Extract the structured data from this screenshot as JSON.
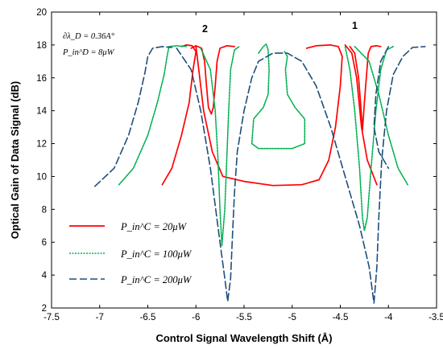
{
  "chart_data": {
    "type": "line",
    "title": "",
    "xlabel": "Control Signal Wavelength Shift (Å)",
    "ylabel": "Optical Gain of  Data Signal (dB)",
    "xlim": [
      -7.5,
      -3.5
    ],
    "ylim": [
      2,
      20
    ],
    "xticks": [
      -7.5,
      -7,
      -6.5,
      -6,
      -5.5,
      -5,
      -4.5,
      -4,
      -3.5
    ],
    "xtick_labels": [
      "-7.5",
      "-7",
      "-6.5",
      "-6",
      "-5.5",
      "-5",
      "-4.5",
      "-4",
      "-3.5"
    ],
    "yticks": [
      2,
      4,
      6,
      8,
      10,
      12,
      14,
      16,
      18,
      20
    ],
    "ytick_labels": [
      "2",
      "4",
      "6",
      "8",
      "10",
      "12",
      "14",
      "16",
      "18",
      "20"
    ],
    "grid": false,
    "legend_position": "lower-left",
    "annotations": {
      "line1": "∂λ_D = 0.36A°",
      "line2": "P_in^D = 8μW",
      "branch_left": "2",
      "branch_right": "1"
    },
    "series": [
      {
        "name": "P_in^C = 20μW",
        "color": "#ff0000",
        "dash": "solid",
        "segments": [
          [
            [
              -6.35,
              9.5
            ],
            [
              -6.25,
              10.5
            ],
            [
              -6.15,
              12.5
            ],
            [
              -6.07,
              14.5
            ],
            [
              -6.03,
              16.5
            ],
            [
              -6.0,
              17.6
            ],
            [
              -6.04,
              17.95
            ],
            [
              -6.1,
              18.0
            ],
            [
              -6.15,
              17.9
            ]
          ],
          [
            [
              -5.6,
              17.9
            ],
            [
              -5.68,
              17.95
            ],
            [
              -5.75,
              17.8
            ],
            [
              -5.78,
              17.0
            ],
            [
              -5.8,
              15.5
            ],
            [
              -5.82,
              14.2
            ],
            [
              -5.84,
              13.8
            ],
            [
              -5.87,
              14.2
            ],
            [
              -5.89,
              15.5
            ],
            [
              -5.91,
              17.0
            ],
            [
              -5.94,
              17.8
            ],
            [
              -6.0,
              17.95
            ],
            [
              -6.05,
              17.8
            ]
          ],
          [
            [
              -6.0,
              17.9
            ],
            [
              -5.97,
              16.5
            ],
            [
              -5.92,
              14.0
            ],
            [
              -5.83,
              11.5
            ],
            [
              -5.72,
              10.0
            ],
            [
              -5.5,
              9.7
            ],
            [
              -5.2,
              9.45
            ],
            [
              -4.9,
              9.5
            ],
            [
              -4.72,
              9.8
            ],
            [
              -4.62,
              11.0
            ],
            [
              -4.55,
              13.0
            ],
            [
              -4.5,
              15.5
            ],
            [
              -4.48,
              17.3
            ],
            [
              -4.52,
              17.9
            ],
            [
              -4.6,
              18.0
            ],
            [
              -4.75,
              17.95
            ],
            [
              -4.85,
              17.8
            ]
          ],
          [
            [
              -4.4,
              17.9
            ],
            [
              -4.35,
              17.5
            ],
            [
              -4.31,
              16.0
            ],
            [
              -4.29,
              14.5
            ],
            [
              -4.27,
              12.8
            ],
            [
              -4.25,
              14.5
            ],
            [
              -4.23,
              16.0
            ],
            [
              -4.21,
              17.5
            ],
            [
              -4.18,
              17.9
            ],
            [
              -4.12,
              17.95
            ],
            [
              -4.08,
              17.9
            ]
          ],
          [
            [
              -4.45,
              18.0
            ],
            [
              -4.38,
              17.5
            ],
            [
              -4.33,
              16.0
            ],
            [
              -4.28,
              13.0
            ],
            [
              -4.22,
              11.0
            ],
            [
              -4.12,
              9.5
            ]
          ]
        ]
      },
      {
        "name": "P_in^C = 100μW",
        "color": "#00b050",
        "dash": "dotted",
        "segments": [
          [
            [
              -6.8,
              9.5
            ],
            [
              -6.65,
              10.5
            ],
            [
              -6.5,
              12.5
            ],
            [
              -6.4,
              14.5
            ],
            [
              -6.33,
              16.2
            ],
            [
              -6.3,
              17.3
            ],
            [
              -6.28,
              17.9
            ],
            [
              -6.2,
              17.95
            ],
            [
              -6.1,
              17.9
            ]
          ],
          [
            [
              -5.95,
              17.8
            ],
            [
              -5.85,
              16.5
            ],
            [
              -5.8,
              14.0
            ],
            [
              -5.77,
              11.0
            ],
            [
              -5.75,
              8.0
            ],
            [
              -5.73,
              5.8
            ],
            [
              -5.7,
              8.0
            ],
            [
              -5.68,
              11.0
            ],
            [
              -5.66,
              14.0
            ],
            [
              -5.64,
              16.5
            ],
            [
              -5.6,
              17.7
            ],
            [
              -5.55,
              17.9
            ]
          ],
          [
            [
              -5.35,
              17.5
            ],
            [
              -5.3,
              17.9
            ],
            [
              -5.27,
              18.05
            ],
            [
              -5.25,
              17.7
            ],
            [
              -5.24,
              16.5
            ],
            [
              -5.25,
              15.0
            ],
            [
              -5.3,
              14.2
            ],
            [
              -5.4,
              13.5
            ],
            [
              -5.42,
              12.0
            ],
            [
              -5.35,
              11.7
            ],
            [
              -5.0,
              11.7
            ],
            [
              -4.87,
              12.0
            ],
            [
              -4.87,
              13.5
            ],
            [
              -4.97,
              14.2
            ],
            [
              -5.05,
              15.0
            ],
            [
              -5.07,
              16.5
            ],
            [
              -5.05,
              17.3
            ],
            [
              -5.08,
              17.6
            ]
          ],
          [
            [
              -4.45,
              17.9
            ],
            [
              -4.4,
              16.5
            ],
            [
              -4.35,
              14.0
            ],
            [
              -4.3,
              10.5
            ],
            [
              -4.27,
              7.5
            ],
            [
              -4.25,
              6.7
            ],
            [
              -4.22,
              7.5
            ],
            [
              -4.18,
              10.5
            ],
            [
              -4.13,
              14.0
            ],
            [
              -4.08,
              16.5
            ],
            [
              -4.02,
              17.7
            ],
            [
              -3.95,
              17.9
            ]
          ],
          [
            [
              -4.35,
              17.9
            ],
            [
              -4.2,
              17.0
            ],
            [
              -4.1,
              15.0
            ],
            [
              -4.0,
              12.5
            ],
            [
              -3.9,
              10.5
            ],
            [
              -3.8,
              9.5
            ]
          ]
        ]
      },
      {
        "name": "P_in^C = 200μW",
        "color": "#1f4e79",
        "dash": "dashed",
        "segments": [
          [
            [
              -7.05,
              9.4
            ],
            [
              -6.85,
              10.5
            ],
            [
              -6.7,
              12.5
            ],
            [
              -6.6,
              14.5
            ],
            [
              -6.53,
              16.3
            ],
            [
              -6.5,
              17.3
            ],
            [
              -6.45,
              17.8
            ],
            [
              -6.35,
              17.9
            ],
            [
              -6.25,
              17.85
            ]
          ],
          [
            [
              -6.2,
              17.8
            ],
            [
              -6.05,
              16.5
            ],
            [
              -5.95,
              14.0
            ],
            [
              -5.85,
              10.5
            ],
            [
              -5.75,
              6.0
            ],
            [
              -5.7,
              3.8
            ],
            [
              -5.67,
              2.4
            ],
            [
              -5.64,
              3.8
            ],
            [
              -5.62,
              6.5
            ],
            [
              -5.6,
              9.0
            ],
            [
              -5.57,
              11.5
            ],
            [
              -5.5,
              14.0
            ],
            [
              -5.42,
              16.0
            ],
            [
              -5.35,
              17.0
            ],
            [
              -5.2,
              17.5
            ],
            [
              -5.05,
              17.5
            ],
            [
              -4.9,
              17.0
            ],
            [
              -4.75,
              15.5
            ],
            [
              -4.6,
              13.0
            ],
            [
              -4.45,
              10.0
            ],
            [
              -4.3,
              7.0
            ],
            [
              -4.2,
              4.5
            ],
            [
              -4.15,
              2.3
            ],
            [
              -4.12,
              4.5
            ],
            [
              -4.1,
              7.5
            ],
            [
              -4.07,
              11.0
            ],
            [
              -4.02,
              14.0
            ],
            [
              -3.95,
              16.2
            ],
            [
              -3.85,
              17.3
            ],
            [
              -3.75,
              17.85
            ],
            [
              -3.62,
              17.9
            ]
          ],
          [
            [
              -4.0,
              17.9
            ],
            [
              -4.08,
              17.0
            ],
            [
              -4.13,
              15.0
            ],
            [
              -4.15,
              13.0
            ],
            [
              -4.1,
              11.5
            ],
            [
              -4.0,
              10.5
            ]
          ]
        ]
      }
    ]
  }
}
